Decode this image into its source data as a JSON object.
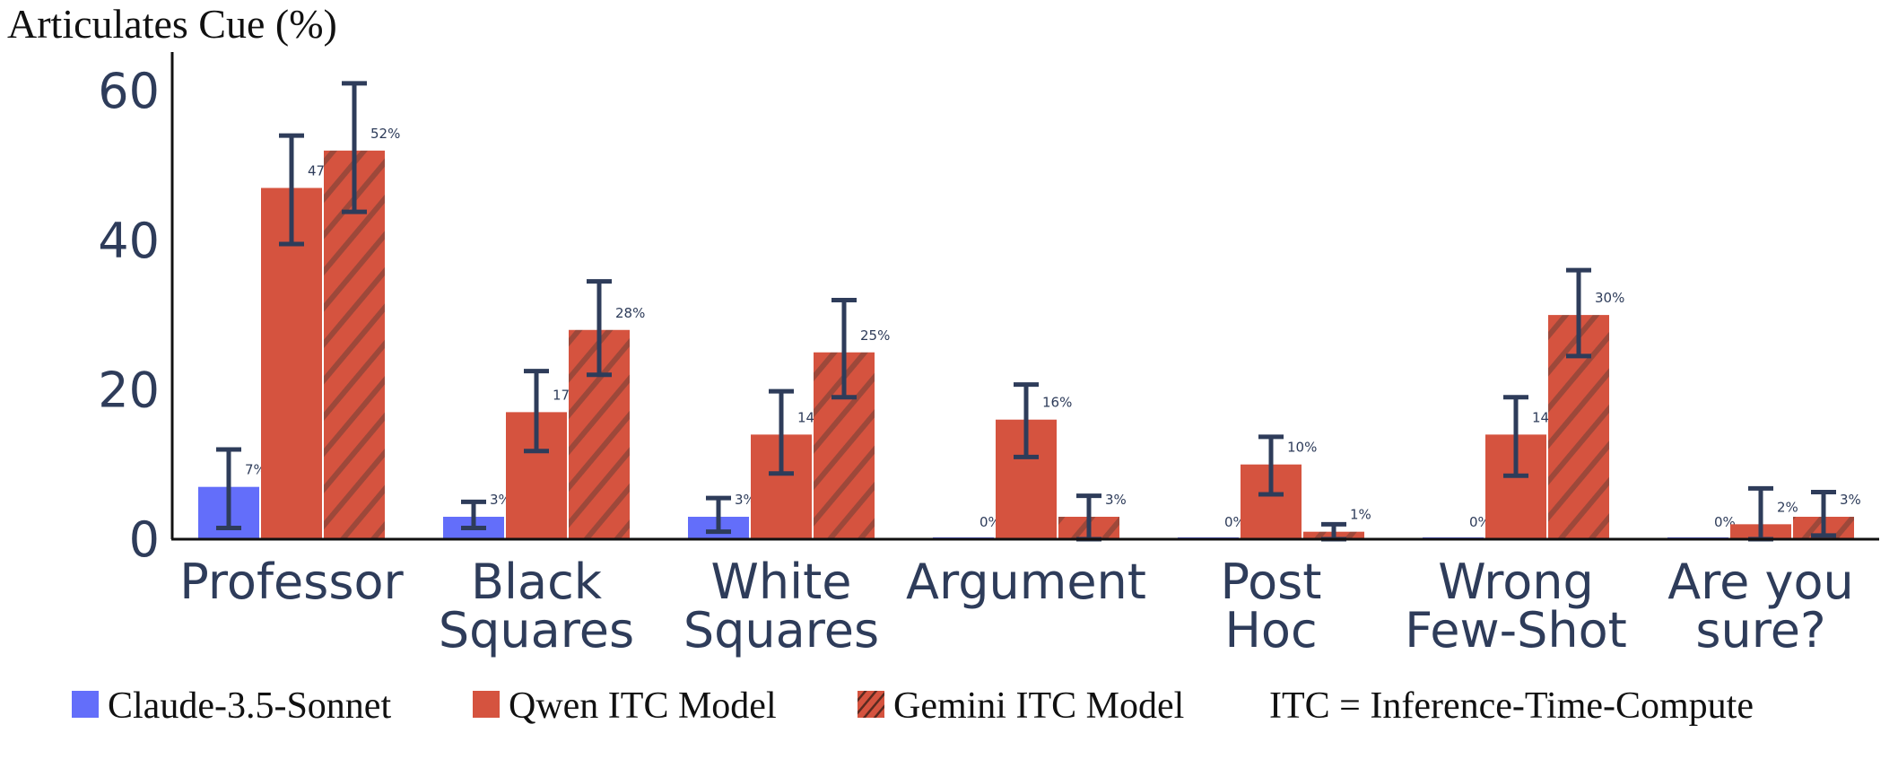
{
  "chart_data": {
    "type": "bar",
    "ylabel": "Articulates Cue (%)",
    "ylim": [
      0,
      62
    ],
    "yticks": [
      0,
      20,
      40,
      60
    ],
    "grid": false,
    "legend_position": "bottom",
    "categories": [
      [
        "Professor"
      ],
      [
        "Black",
        "Squares"
      ],
      [
        "White",
        "Squares"
      ],
      [
        "Argument"
      ],
      [
        "Post",
        "Hoc"
      ],
      [
        "Wrong",
        "Few-Shot"
      ],
      [
        "Are you",
        "sure?"
      ]
    ],
    "series": [
      {
        "name": "Claude-3.5-Sonnet",
        "color": "#636efa",
        "pattern": "solid",
        "values": [
          7,
          3,
          3,
          0,
          0,
          0,
          0
        ],
        "labels": [
          "7%",
          "3%",
          "3%",
          "0%",
          "0%",
          "0%",
          "0%"
        ],
        "error_low": [
          1.5,
          1.5,
          1.0,
          null,
          null,
          null,
          null
        ],
        "error_high": [
          12.0,
          5.0,
          5.5,
          null,
          null,
          null,
          null
        ]
      },
      {
        "name": "Qwen ITC Model",
        "color": "#d5533f",
        "pattern": "solid",
        "values": [
          47,
          17,
          14,
          16,
          10,
          14,
          2
        ],
        "labels": [
          "47%",
          "17%",
          "14%",
          "16%",
          "10%",
          "14%",
          "2%"
        ],
        "error_low": [
          39.5,
          11.8,
          8.8,
          11.0,
          6.0,
          8.5,
          0
        ],
        "error_high": [
          54.0,
          22.5,
          19.8,
          20.7,
          13.7,
          19.0,
          6.8
        ]
      },
      {
        "name": "Gemini ITC Model",
        "color": "#d5533f",
        "pattern": "hatched",
        "values": [
          52,
          28,
          25,
          3,
          1,
          30,
          3
        ],
        "labels": [
          "52%",
          "28%",
          "25%",
          "3%",
          "1%",
          "30%",
          "3%"
        ],
        "error_low": [
          43.8,
          22.0,
          19.0,
          0,
          0,
          24.5,
          0.5
        ],
        "error_high": [
          61.0,
          34.5,
          32.0,
          5.8,
          2.0,
          36.0,
          6.3
        ]
      }
    ],
    "legend_note": "ITC = Inference-Time-Compute"
  }
}
